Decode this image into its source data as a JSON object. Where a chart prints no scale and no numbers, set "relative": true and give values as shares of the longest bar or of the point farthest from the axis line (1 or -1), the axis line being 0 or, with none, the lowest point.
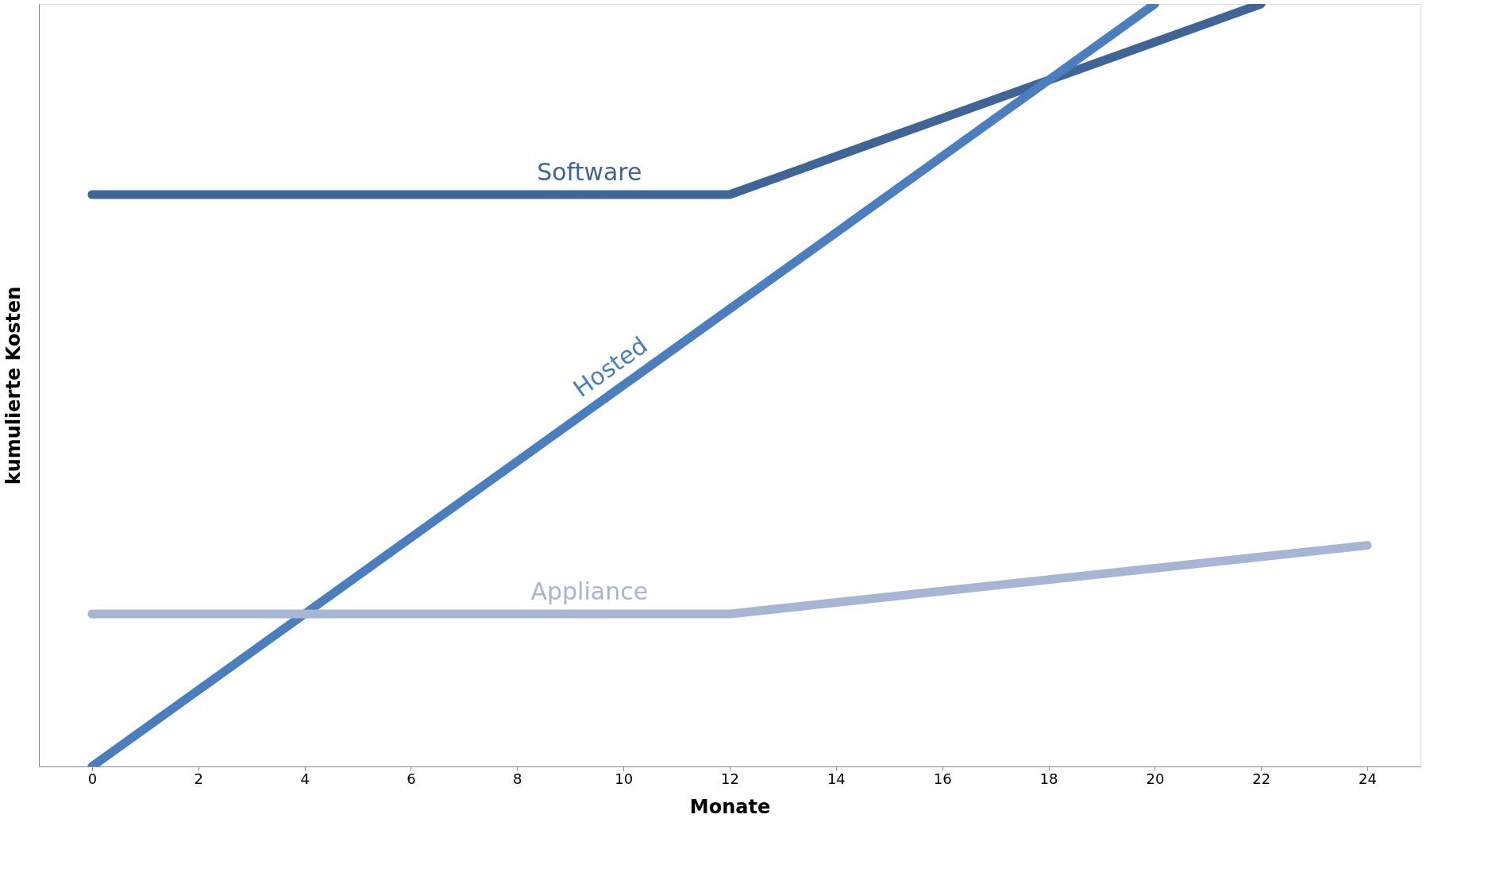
{
  "chart_data": {
    "type": "line",
    "relative": true,
    "xlabel": "Monate",
    "ylabel": "kumulierte Kosten",
    "xlim": [
      -1,
      25
    ],
    "xticks": [
      0,
      2,
      4,
      6,
      8,
      10,
      12,
      14,
      16,
      18,
      20,
      22,
      24
    ],
    "grid": false,
    "marker": "none",
    "line_style": "solid",
    "series": [
      {
        "name": "Software",
        "color": "#3f6597",
        "x": [
          0,
          12,
          22
        ],
        "values": [
          0.75,
          0.75,
          1.0
        ]
      },
      {
        "name": "Hosted",
        "color": "#4a7ebf",
        "x": [
          0,
          20
        ],
        "values": [
          0,
          1.0
        ]
      },
      {
        "name": "Appliance",
        "color": "#a5b5d3",
        "x": [
          0,
          12,
          24
        ],
        "values": [
          0.2,
          0.2,
          0.29
        ]
      }
    ]
  }
}
